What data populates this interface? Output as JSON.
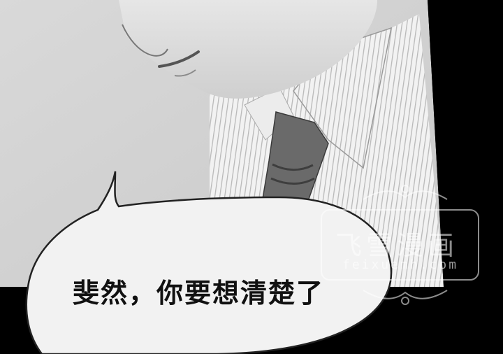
{
  "dialogue": {
    "line": "斐然，你要想清楚了"
  },
  "watermark": {
    "brand": "飞雪漫画",
    "url": "feixuemh.com"
  }
}
